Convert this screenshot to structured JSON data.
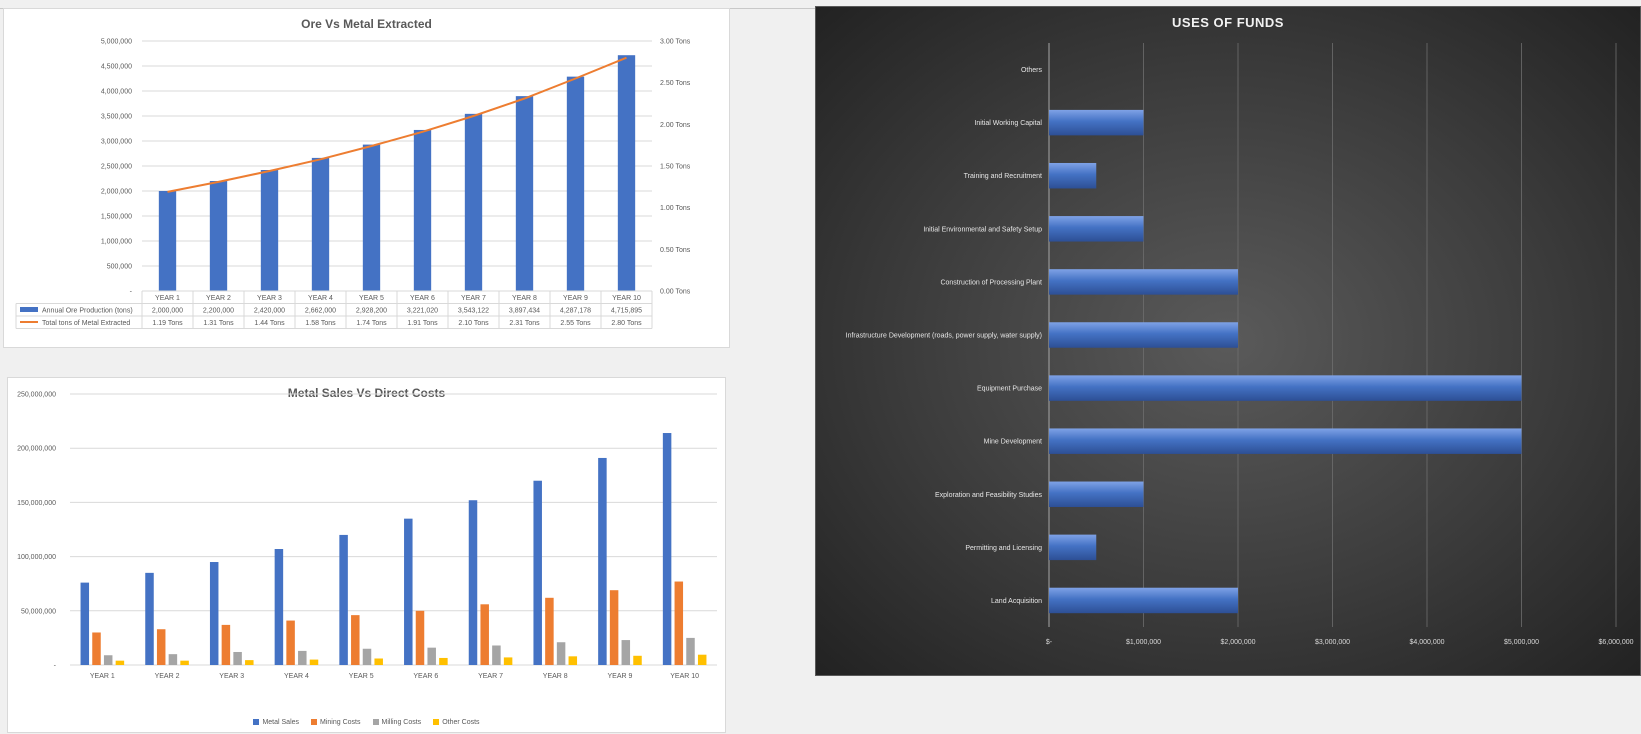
{
  "chart_data": [
    {
      "type": "bar",
      "title": "Ore Vs  Metal Extracted",
      "categories": [
        "YEAR 1",
        "YEAR 2",
        "YEAR 3",
        "YEAR 4",
        "YEAR 5",
        "YEAR 6",
        "YEAR 7",
        "YEAR 8",
        "YEAR 9",
        "YEAR 10"
      ],
      "series": [
        {
          "name": "Annual Ore Production (tons)",
          "type": "bar",
          "color": "#4472c4",
          "values": [
            2000000,
            2200000,
            2420000,
            2662000,
            2928200,
            3221020,
            3543122,
            3897434,
            4287178,
            4715895
          ],
          "labels": [
            "2,000,000",
            "2,200,000",
            "2,420,000",
            "2,662,000",
            "2,928,200",
            "3,221,020",
            "3,543,122",
            "3,897,434",
            "4,287,178",
            "4,715,895"
          ]
        },
        {
          "name": "Total tons of Metal Extracted",
          "type": "line",
          "color": "#ed7d31",
          "axis": "secondary",
          "values": [
            1.19,
            1.31,
            1.44,
            1.58,
            1.74,
            1.91,
            2.1,
            2.31,
            2.55,
            2.8
          ],
          "labels": [
            "1.19 Tons",
            "1.31 Tons",
            "1.44 Tons",
            "1.58 Tons",
            "1.74 Tons",
            "1.91 Tons",
            "2.10 Tons",
            "2.31 Tons",
            "2.55 Tons",
            "2.80 Tons"
          ]
        }
      ],
      "ylim": [
        0,
        5000000
      ],
      "yticks": [
        "-",
        "500,000",
        "1,000,000",
        "1,500,000",
        "2,000,000",
        "2,500,000",
        "3,000,000",
        "3,500,000",
        "4,000,000",
        "4,500,000",
        "5,000,000"
      ],
      "y2lim": [
        0,
        3.0
      ],
      "y2ticks": [
        "0.00 Tons",
        "0.50 Tons",
        "1.00 Tons",
        "1.50 Tons",
        "2.00 Tons",
        "2.50 Tons",
        "3.00 Tons"
      ],
      "grid": true,
      "data_table": true
    },
    {
      "type": "bar",
      "title": "Metal Sales Vs Direct Costs",
      "categories": [
        "YEAR 1",
        "YEAR 2",
        "YEAR 3",
        "YEAR 4",
        "YEAR 5",
        "YEAR 6",
        "YEAR 7",
        "YEAR 8",
        "YEAR 9",
        "YEAR 10"
      ],
      "series": [
        {
          "name": "Metal Sales",
          "color": "#4472c4",
          "values": [
            76000000,
            85000000,
            95000000,
            107000000,
            120000000,
            135000000,
            152000000,
            170000000,
            191000000,
            214000000
          ]
        },
        {
          "name": "Mining Costs",
          "color": "#ed7d31",
          "values": [
            30000000,
            33000000,
            37000000,
            41000000,
            46000000,
            50000000,
            56000000,
            62000000,
            69000000,
            77000000
          ]
        },
        {
          "name": "Milling Costs",
          "color": "#a5a5a5",
          "values": [
            9000000,
            10000000,
            12000000,
            13000000,
            15000000,
            16000000,
            18000000,
            21000000,
            23000000,
            25000000
          ]
        },
        {
          "name": "Other Costs",
          "color": "#ffc000",
          "values": [
            4000000,
            4000000,
            4500000,
            5000000,
            6000000,
            6500000,
            7000000,
            8000000,
            8500000,
            9500000
          ]
        }
      ],
      "ylim": [
        0,
        250000000
      ],
      "yticks": [
        "-",
        "50,000,000",
        "100,000,000",
        "150,000,000",
        "200,000,000",
        "250,000,000"
      ],
      "grid": true,
      "legend": "bottom"
    },
    {
      "type": "bar",
      "orientation": "horizontal",
      "title": "USES OF FUNDS",
      "categories": [
        "Land Acquisition",
        "Permitting and Licensing",
        "Exploration and Feasibility Studies",
        "Mine Development",
        "Equipment Purchase",
        "Infrastructure Development (roads, power supply, water supply)",
        "Construction of Processing Plant",
        "Initial Environmental and Safety Setup",
        "Training and Recruitment",
        "Initial Working Capital",
        "Others"
      ],
      "values": [
        2000000,
        500000,
        1000000,
        5000000,
        5000000,
        2000000,
        2000000,
        1000000,
        500000,
        1000000,
        0
      ],
      "color": "#4472c4",
      "xlim": [
        0,
        6000000
      ],
      "xticks": [
        "$-",
        "$1,000,000",
        "$2,000,000",
        "$3,000,000",
        "$4,000,000",
        "$5,000,000",
        "$6,000,000"
      ],
      "grid": true
    }
  ]
}
